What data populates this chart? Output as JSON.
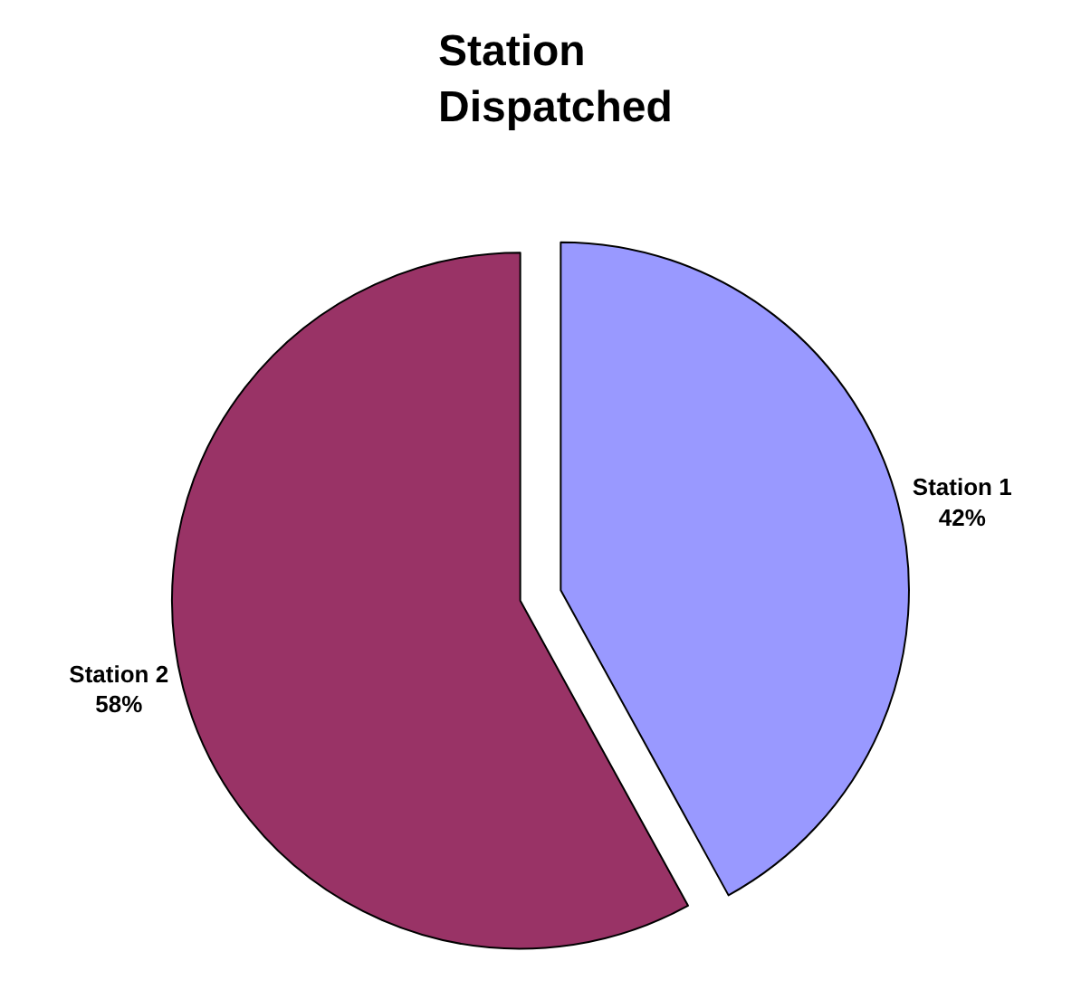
{
  "chart_data": {
    "type": "pie",
    "title": "Station\nDispatched",
    "categories": [
      "Station 1",
      "Station 2"
    ],
    "values": [
      42,
      58
    ],
    "value_labels": [
      "42%",
      "58%"
    ],
    "colors": [
      "#9999ff",
      "#993366"
    ],
    "legend": false
  }
}
